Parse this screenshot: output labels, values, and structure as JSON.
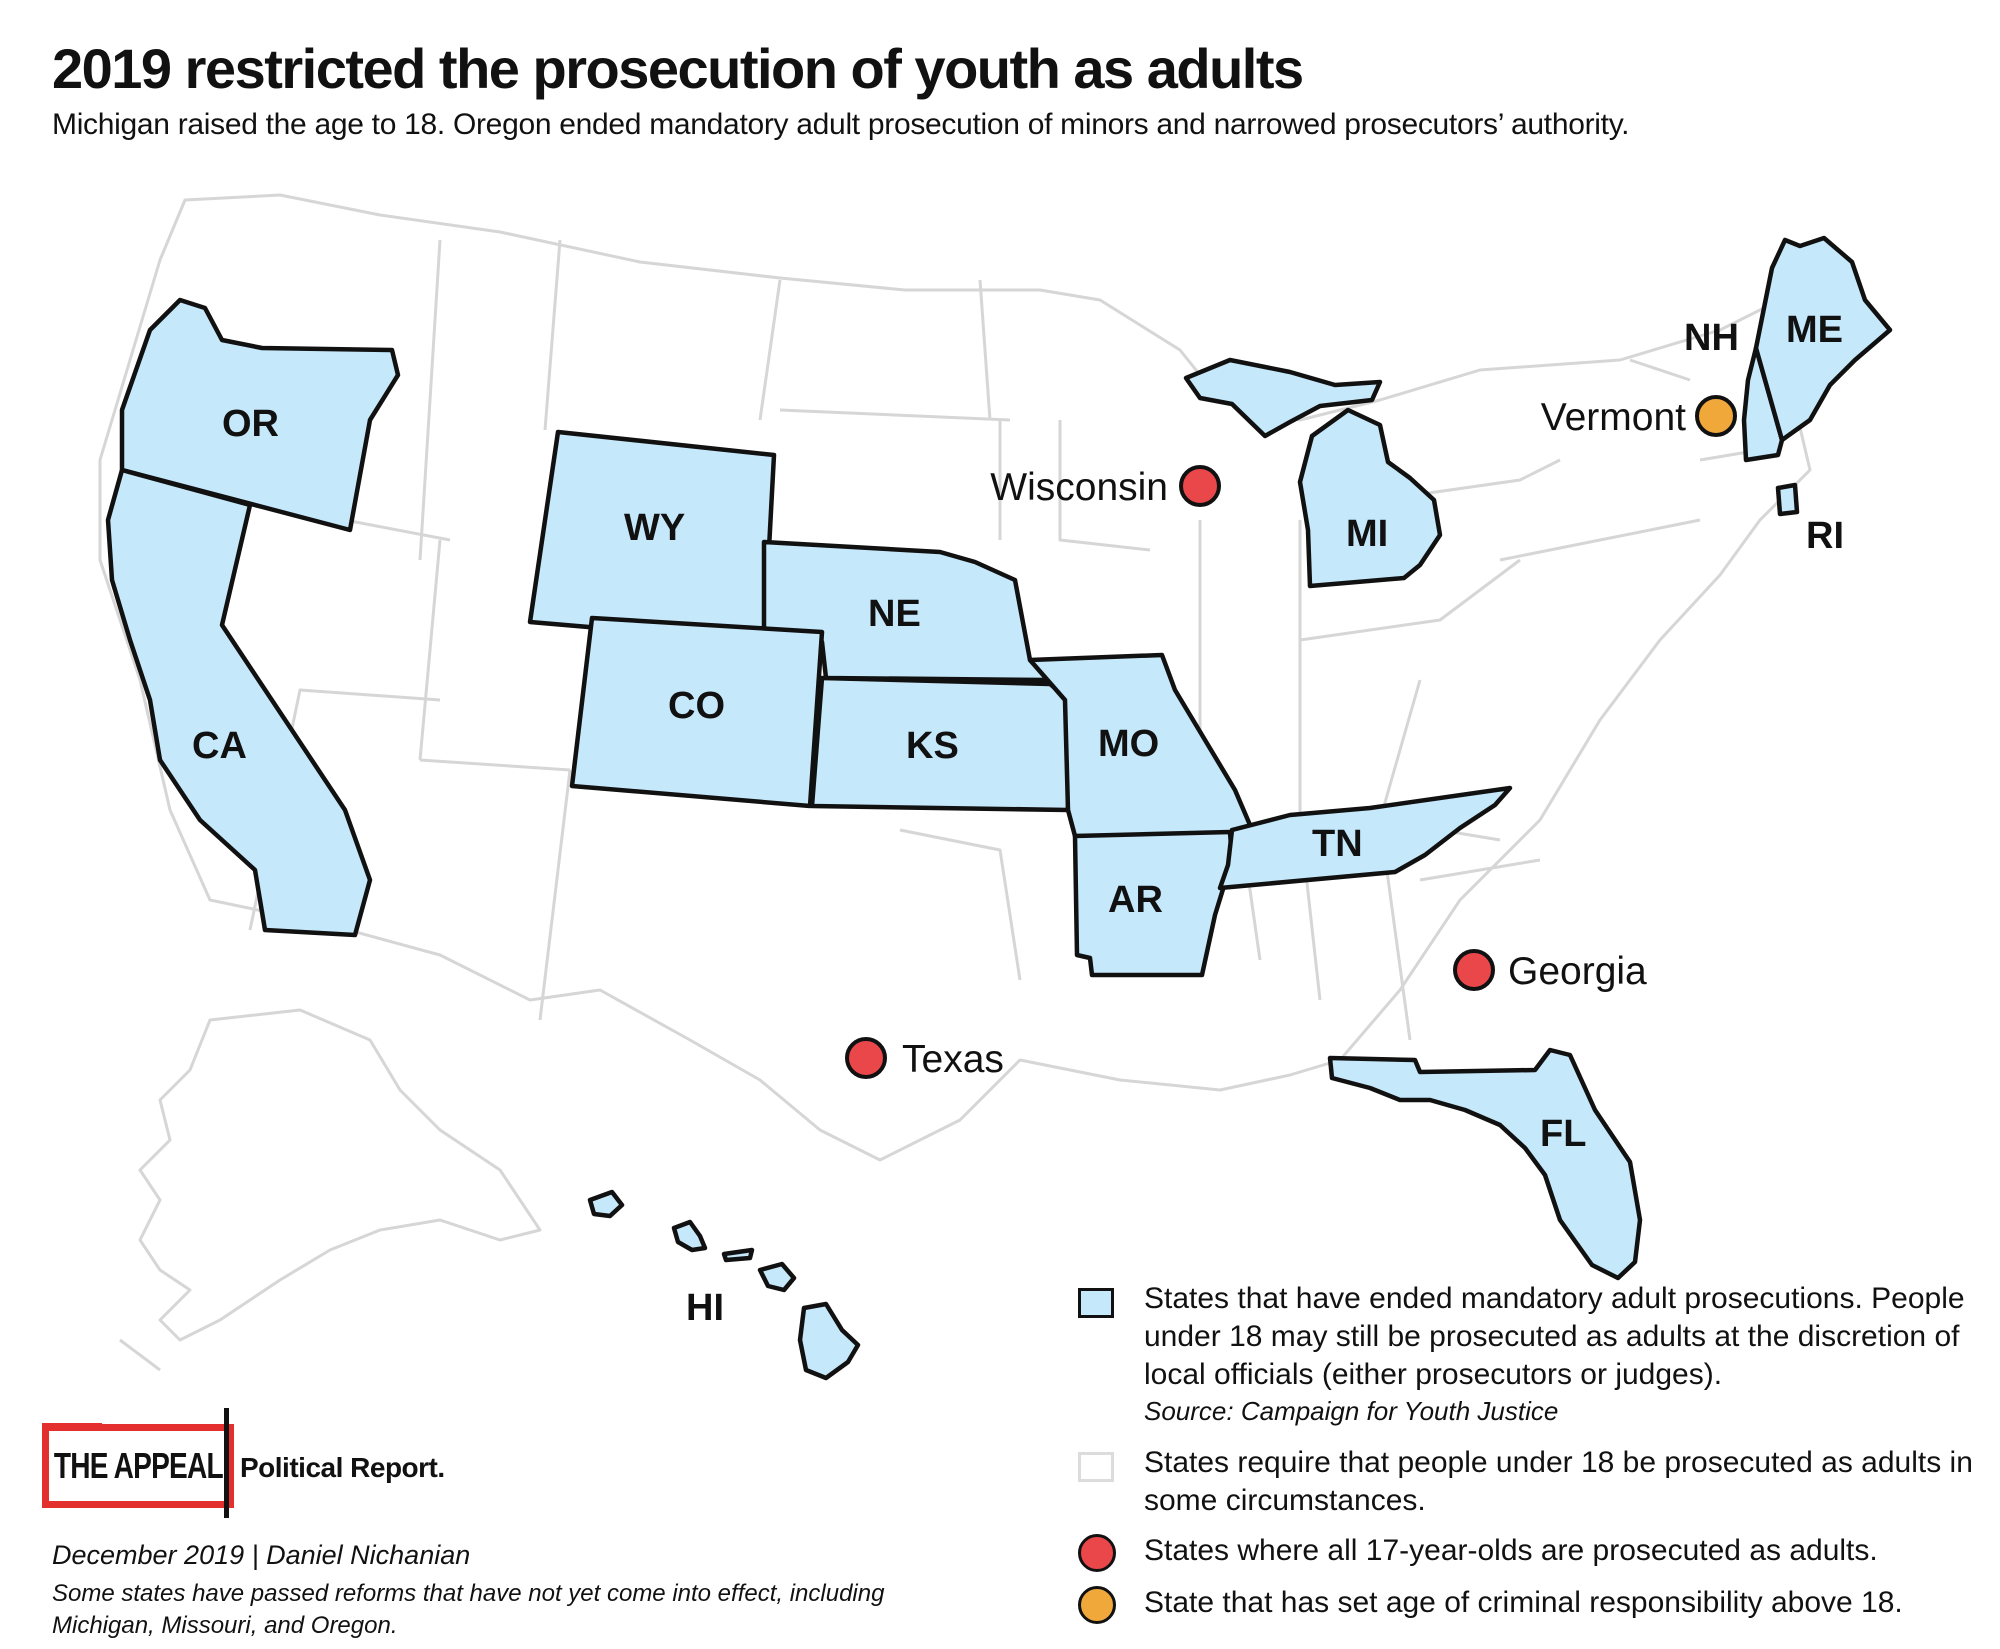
{
  "title": "2019 restricted the prosecution of youth as adults",
  "subtitle": "Michigan raised the age to 18. Oregon ended mandatory adult prosecution of minors and narrowed prosecutors’ authority.",
  "colors": {
    "highlight_fill": "#c5e8fb",
    "outline_dark": "#111111",
    "outline_light": "#d6d6d6",
    "dot_red": "#e9474a",
    "dot_orange": "#f0a83b",
    "brand_red": "#e3302f"
  },
  "map": {
    "highlighted_states": [
      {
        "code": "OR",
        "label": "OR"
      },
      {
        "code": "CA",
        "label": "CA"
      },
      {
        "code": "WY",
        "label": "WY"
      },
      {
        "code": "NE",
        "label": "NE"
      },
      {
        "code": "CO",
        "label": "CO"
      },
      {
        "code": "KS",
        "label": "KS"
      },
      {
        "code": "MO",
        "label": "MO"
      },
      {
        "code": "AR",
        "label": "AR"
      },
      {
        "code": "TN",
        "label": "TN"
      },
      {
        "code": "MI",
        "label": "MI"
      },
      {
        "code": "FL",
        "label": "FL"
      },
      {
        "code": "NH",
        "label": "NH"
      },
      {
        "code": "ME",
        "label": "ME"
      },
      {
        "code": "RI",
        "label": "RI"
      },
      {
        "code": "HI",
        "label": "HI"
      }
    ],
    "callouts": [
      {
        "state": "Wisconsin",
        "label": "Wisconsin",
        "category": "all_17_year_olds_adults"
      },
      {
        "state": "Vermont",
        "label": "Vermont",
        "category": "age_above_18"
      },
      {
        "state": "Georgia",
        "label": "Georgia",
        "category": "all_17_year_olds_adults"
      },
      {
        "state": "Texas",
        "label": "Texas",
        "category": "all_17_year_olds_adults"
      }
    ]
  },
  "legend": {
    "ended_mandatory": "States that have ended mandatory adult prosecutions. People under 18 may still be prosecuted as adults at the discretion of local officials (either prosecutors or judges).",
    "source": "Source: Campaign for Youth Justice",
    "require_some": "States require that people under 18 be prosecuted as adults in some circumstances.",
    "all_17": "States where all 17-year-olds are prosecuted as adults.",
    "above_18": "State that has set age of criminal responsibility above 18."
  },
  "branding": {
    "logo_text": "THE APPEAL",
    "publication": "Political Report."
  },
  "byline": "December 2019 | Daniel Nichanian",
  "footnote": "Some states have passed reforms that have not yet come into effect, including Michigan, Missouri, and Oregon."
}
